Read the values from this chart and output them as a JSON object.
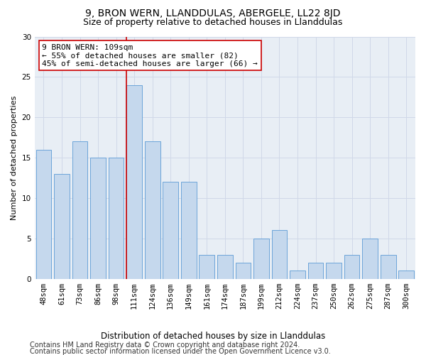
{
  "title": "9, BRON WERN, LLANDDULAS, ABERGELE, LL22 8JD",
  "subtitle": "Size of property relative to detached houses in Llanddulas",
  "xlabel": "Distribution of detached houses by size in Llanddulas",
  "ylabel": "Number of detached properties",
  "categories": [
    "48sqm",
    "61sqm",
    "73sqm",
    "86sqm",
    "98sqm",
    "111sqm",
    "124sqm",
    "136sqm",
    "149sqm",
    "161sqm",
    "174sqm",
    "187sqm",
    "199sqm",
    "212sqm",
    "224sqm",
    "237sqm",
    "250sqm",
    "262sqm",
    "275sqm",
    "287sqm",
    "300sqm"
  ],
  "values": [
    16,
    13,
    17,
    15,
    15,
    24,
    17,
    12,
    12,
    3,
    3,
    2,
    5,
    6,
    1,
    2,
    2,
    3,
    5,
    3,
    1
  ],
  "highlight_index": 5,
  "bar_color": "#c5d8ed",
  "bar_edge_color": "#5b9bd5",
  "highlight_line_color": "#cc0000",
  "annotation_line1": "9 BRON WERN: 109sqm",
  "annotation_line2": "← 55% of detached houses are smaller (82)",
  "annotation_line3": "45% of semi-detached houses are larger (66) →",
  "annotation_box_edge_color": "#cc0000",
  "ylim": [
    0,
    30
  ],
  "yticks": [
    0,
    5,
    10,
    15,
    20,
    25,
    30
  ],
  "footer_line1": "Contains HM Land Registry data © Crown copyright and database right 2024.",
  "footer_line2": "Contains public sector information licensed under the Open Government Licence v3.0.",
  "title_fontsize": 10,
  "subtitle_fontsize": 9,
  "xlabel_fontsize": 8.5,
  "ylabel_fontsize": 8,
  "tick_fontsize": 7.5,
  "footer_fontsize": 7,
  "annotation_fontsize": 8,
  "grid_color": "#d0d8e8",
  "axes_bg_color": "#e8eef5"
}
